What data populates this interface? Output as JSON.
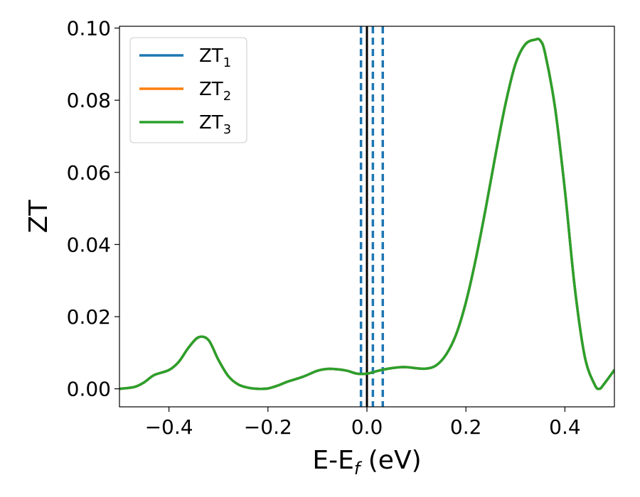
{
  "chart_data": {
    "type": "line",
    "xlabel": "E-E",
    "xlabel_sub": "f",
    "xlabel_unit": " (eV)",
    "ylabel": "ZT",
    "xlim": [
      -0.5,
      0.5
    ],
    "ylim": [
      -0.005,
      0.1005
    ],
    "xticks": [
      -0.4,
      -0.2,
      0.0,
      0.2,
      0.4
    ],
    "xtick_labels": [
      "−0.4",
      "−0.2",
      "0.0",
      "0.2",
      "0.4"
    ],
    "yticks": [
      0.0,
      0.02,
      0.04,
      0.06,
      0.08,
      0.1
    ],
    "ytick_labels": [
      "0.00",
      "0.02",
      "0.04",
      "0.06",
      "0.08",
      "0.10"
    ],
    "grid": false,
    "legend_position": "top-left",
    "series": [
      {
        "name": "ZT",
        "sub": "1",
        "color": "#1f77b4",
        "x": [
          -0.5,
          -0.47,
          -0.45,
          -0.43,
          -0.4,
          -0.38,
          -0.36,
          -0.34,
          -0.32,
          -0.3,
          -0.28,
          -0.26,
          -0.24,
          -0.22,
          -0.2,
          -0.18,
          -0.16,
          -0.13,
          -0.1,
          -0.08,
          -0.06,
          -0.04,
          -0.02,
          0.0,
          0.02,
          0.04,
          0.06,
          0.08,
          0.1,
          0.12,
          0.14,
          0.16,
          0.18,
          0.2,
          0.22,
          0.24,
          0.26,
          0.28,
          0.3,
          0.32,
          0.34,
          0.35,
          0.36,
          0.38,
          0.4,
          0.42,
          0.44,
          0.46,
          0.47,
          0.48,
          0.5
        ],
        "y": [
          0.0,
          0.0005,
          0.0018,
          0.0038,
          0.0052,
          0.0075,
          0.0115,
          0.0143,
          0.0135,
          0.008,
          0.0035,
          0.0012,
          0.0003,
          0.0,
          0.0001,
          0.0009,
          0.002,
          0.0033,
          0.005,
          0.0055,
          0.0054,
          0.005,
          0.0042,
          0.0042,
          0.0049,
          0.0055,
          0.0059,
          0.006,
          0.0057,
          0.0056,
          0.0065,
          0.0095,
          0.015,
          0.024,
          0.036,
          0.05,
          0.065,
          0.079,
          0.09,
          0.0955,
          0.0968,
          0.0966,
          0.093,
          0.078,
          0.055,
          0.028,
          0.009,
          0.0012,
          0.0,
          0.0015,
          0.0052
        ]
      },
      {
        "name": "ZT",
        "sub": "2",
        "color": "#ff7f0e",
        "x": [
          -0.5,
          -0.47,
          -0.45,
          -0.43,
          -0.4,
          -0.38,
          -0.36,
          -0.34,
          -0.32,
          -0.3,
          -0.28,
          -0.26,
          -0.24,
          -0.22,
          -0.2,
          -0.18,
          -0.16,
          -0.13,
          -0.1,
          -0.08,
          -0.06,
          -0.04,
          -0.02,
          0.0,
          0.02,
          0.04,
          0.06,
          0.08,
          0.1,
          0.12,
          0.14,
          0.16,
          0.18,
          0.2,
          0.22,
          0.24,
          0.26,
          0.28,
          0.3,
          0.32,
          0.34,
          0.35,
          0.36,
          0.38,
          0.4,
          0.42,
          0.44,
          0.46,
          0.47,
          0.48,
          0.5
        ],
        "y": [
          0.0,
          0.0005,
          0.0018,
          0.0038,
          0.0052,
          0.0075,
          0.0115,
          0.0143,
          0.0135,
          0.008,
          0.0035,
          0.0012,
          0.0003,
          0.0,
          0.0001,
          0.0009,
          0.002,
          0.0033,
          0.005,
          0.0055,
          0.0054,
          0.005,
          0.0042,
          0.0042,
          0.0049,
          0.0055,
          0.0059,
          0.006,
          0.0057,
          0.0056,
          0.0065,
          0.0095,
          0.015,
          0.024,
          0.036,
          0.05,
          0.065,
          0.079,
          0.09,
          0.0955,
          0.0968,
          0.0966,
          0.093,
          0.078,
          0.055,
          0.028,
          0.009,
          0.0012,
          0.0,
          0.0015,
          0.0052
        ]
      },
      {
        "name": "ZT",
        "sub": "3",
        "color": "#2ca02c",
        "x": [
          -0.5,
          -0.47,
          -0.45,
          -0.43,
          -0.4,
          -0.38,
          -0.36,
          -0.34,
          -0.32,
          -0.3,
          -0.28,
          -0.26,
          -0.24,
          -0.22,
          -0.2,
          -0.18,
          -0.16,
          -0.13,
          -0.1,
          -0.08,
          -0.06,
          -0.04,
          -0.02,
          0.0,
          0.02,
          0.04,
          0.06,
          0.08,
          0.1,
          0.12,
          0.14,
          0.16,
          0.18,
          0.2,
          0.22,
          0.24,
          0.26,
          0.28,
          0.3,
          0.32,
          0.34,
          0.35,
          0.36,
          0.38,
          0.4,
          0.42,
          0.44,
          0.46,
          0.47,
          0.48,
          0.5
        ],
        "y": [
          0.0,
          0.0005,
          0.0018,
          0.0038,
          0.0052,
          0.0075,
          0.0115,
          0.0143,
          0.0135,
          0.008,
          0.0035,
          0.0012,
          0.0003,
          0.0,
          0.0001,
          0.0009,
          0.002,
          0.0033,
          0.005,
          0.0055,
          0.0054,
          0.005,
          0.0042,
          0.0042,
          0.0049,
          0.0055,
          0.0059,
          0.006,
          0.0057,
          0.0056,
          0.0065,
          0.0095,
          0.015,
          0.024,
          0.036,
          0.05,
          0.065,
          0.079,
          0.09,
          0.0955,
          0.0968,
          0.0966,
          0.093,
          0.078,
          0.055,
          0.028,
          0.009,
          0.0012,
          0.0,
          0.0015,
          0.0052
        ]
      }
    ],
    "vlines": [
      {
        "x": 0.0,
        "color": "#000000",
        "style": "solid"
      },
      {
        "x": -0.012,
        "color": "#1f77b4",
        "style": "dashed"
      },
      {
        "x": 0.012,
        "color": "#1f77b4",
        "style": "dashed"
      },
      {
        "x": 0.032,
        "color": "#1f77b4",
        "style": "dashed"
      }
    ]
  }
}
